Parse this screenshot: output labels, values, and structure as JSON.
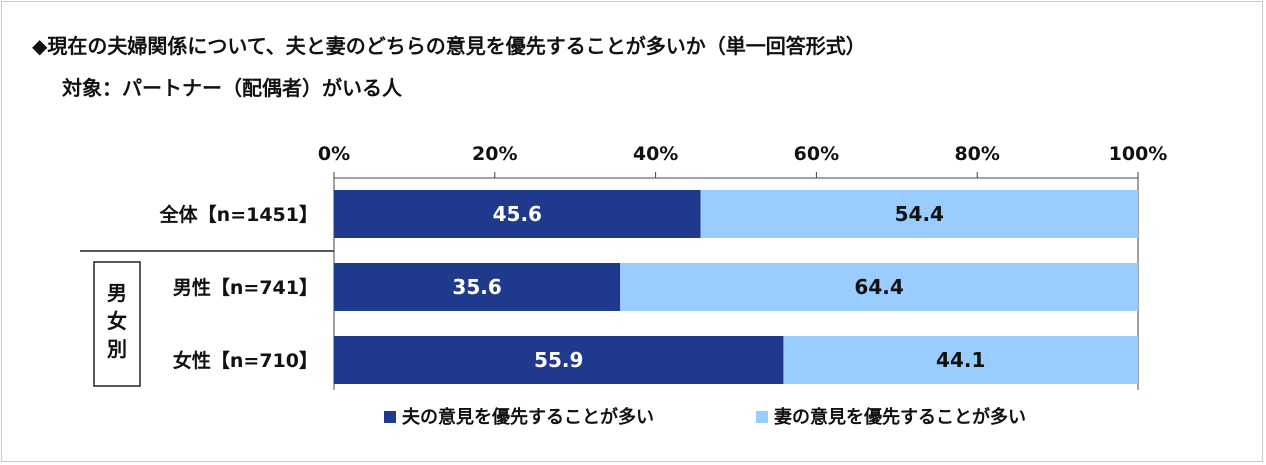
{
  "title": "◆現在の夫婦関係について、夫と妻のどちらの意見を優先することが多いか（単一回答形式）",
  "subtitle": "対象：パートナー（配偶者）がいる人",
  "colors": {
    "husband": "#1f3a8c",
    "wife": "#99ccff"
  },
  "chart_data": {
    "type": "bar",
    "orientation": "horizontal-stacked-100",
    "xlim": [
      0,
      100
    ],
    "ticks": [
      "0%",
      "20%",
      "40%",
      "60%",
      "80%",
      "100%"
    ],
    "tick_values": [
      0,
      20,
      40,
      60,
      80,
      100
    ],
    "categories": [
      "全体【n=1451】",
      "男性【n=741】",
      "女性【n=710】"
    ],
    "group_label": [
      "男",
      "女",
      "別"
    ],
    "series": [
      {
        "name": "夫の意見を優先することが多い",
        "values": [
          45.6,
          35.6,
          55.9
        ]
      },
      {
        "name": "妻の意見を優先することが多い",
        "values": [
          54.4,
          64.4,
          44.1
        ]
      }
    ],
    "value_labels": [
      [
        "45.6",
        "35.6",
        "55.9"
      ],
      [
        "54.4",
        "64.4",
        "44.1"
      ]
    ]
  }
}
